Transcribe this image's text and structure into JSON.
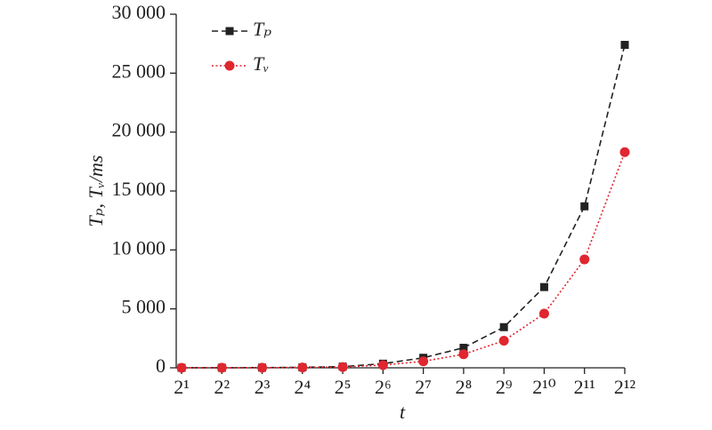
{
  "chart_data": {
    "type": "line",
    "categories": [
      "2¹",
      "2²",
      "2³",
      "2⁴",
      "2⁵",
      "2⁶",
      "2⁷",
      "2⁸",
      "2⁹",
      "2¹⁰",
      "2¹¹",
      "2¹²"
    ],
    "x_label": "t",
    "y_label": "Tₚ, Tᵥ/ms",
    "series": [
      {
        "name": "Tₚ",
        "color": "#222222",
        "marker": "square",
        "dash": "dashed",
        "values": [
          0,
          5,
          15,
          40,
          100,
          350,
          850,
          1700,
          3450,
          6850,
          13700,
          27400
        ]
      },
      {
        "name": "Tᵥ",
        "color": "#e0262f",
        "marker": "circle",
        "dash": "dotted",
        "values": [
          0,
          5,
          10,
          30,
          70,
          230,
          550,
          1150,
          2300,
          4600,
          9200,
          18300
        ]
      }
    ],
    "ylim": [
      0,
      30000
    ],
    "yticks": [
      0,
      {
        "value": 5000,
        "label": "5 000"
      },
      {
        "value": 10000,
        "label": "10 000"
      },
      {
        "value": 15000,
        "label": "15 000"
      },
      {
        "value": 20000,
        "label": "20 000"
      },
      {
        "value": 25000,
        "label": "25 000"
      },
      {
        "value": 30000,
        "label": "30 000"
      }
    ],
    "legend": "upper-left",
    "grid": false
  }
}
